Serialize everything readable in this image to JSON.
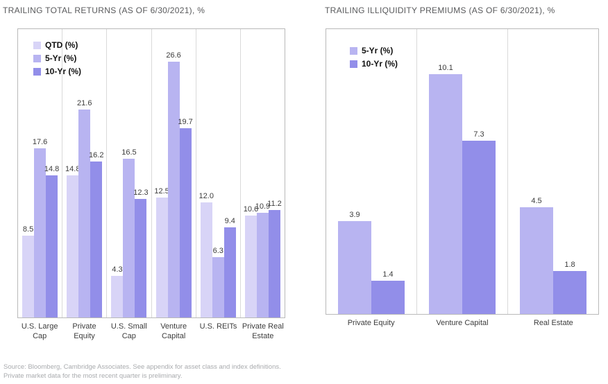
{
  "footer": {
    "source_line1": "Source: Bloomberg, Cambridge Associates. See appendix for asset class and index definitions.",
    "source_line2": "Private market data for the most recent quarter is preliminary."
  },
  "colors": {
    "qtd_bar": "#d8d4f7",
    "five_yr_bar": "#b8b4f1",
    "ten_yr_bar": "#928ee9"
  },
  "chart_data": [
    {
      "type": "bar",
      "title": "TRAILING TOTAL RETURNS (AS OF 6/30/2021), %",
      "categories": [
        "U.S. Large\nCap",
        "Private Equity",
        "U.S. Small\nCap",
        "Venture\nCapital",
        "U.S. REITs",
        "Private Real\nEstate"
      ],
      "series": [
        {
          "name": "QTD (%)",
          "color": "#d8d4f7",
          "values": [
            8.5,
            14.8,
            4.3,
            12.5,
            12.0,
            10.6
          ]
        },
        {
          "name": "5-Yr (%)",
          "color": "#b8b4f1",
          "values": [
            17.6,
            21.6,
            16.5,
            26.6,
            6.3,
            10.9
          ]
        },
        {
          "name": "10-Yr (%)",
          "color": "#928ee9",
          "values": [
            14.8,
            16.2,
            12.3,
            19.7,
            9.4,
            11.2
          ]
        }
      ],
      "ylim": [
        0,
        30
      ],
      "grid": "vertical-category-separators",
      "legend_position": "top-left-inside",
      "value_labels": true
    },
    {
      "type": "bar",
      "title": "TRAILING ILLIQUIDITY PREMIUMS (AS OF 6/30/2021), %",
      "categories": [
        "Private Equity",
        "Venture Capital",
        "Real Estate"
      ],
      "series": [
        {
          "name": "5-Yr (%)",
          "color": "#b8b4f1",
          "values": [
            3.9,
            10.1,
            4.5
          ]
        },
        {
          "name": "10-Yr (%)",
          "color": "#928ee9",
          "values": [
            1.4,
            7.3,
            1.8
          ]
        }
      ],
      "ylim": [
        0,
        12
      ],
      "grid": "vertical-category-separators",
      "legend_position": "top-left-inside",
      "value_labels": true
    }
  ]
}
